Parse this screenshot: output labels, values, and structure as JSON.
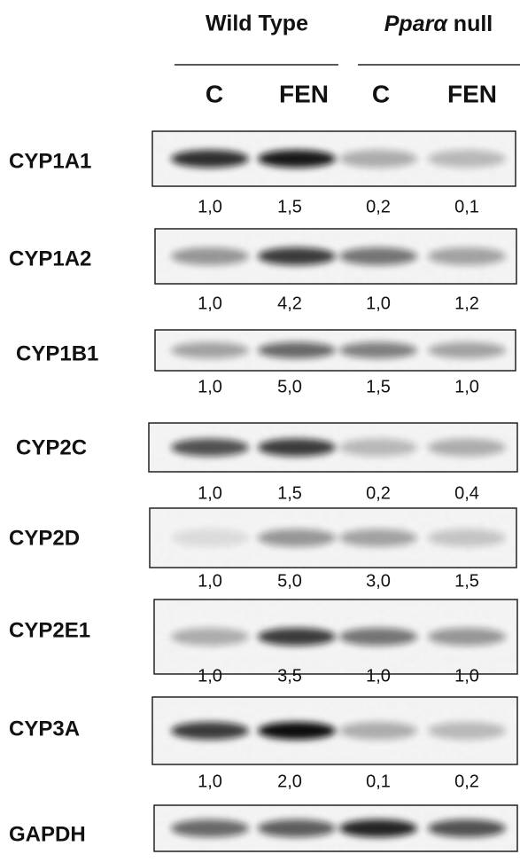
{
  "header": {
    "groups": [
      {
        "text": "Wild Type"
      },
      {
        "italic": "Pparα",
        "text": "null"
      }
    ],
    "lanes": [
      "C",
      "FEN",
      "C",
      "FEN"
    ]
  },
  "rows": [
    {
      "label": "CYP1A1",
      "values": [
        "1,0",
        "1,5",
        "0,2",
        "0,1"
      ]
    },
    {
      "label": "CYP1A2",
      "values": [
        "1,0",
        "4,2",
        "1,0",
        "1,2"
      ]
    },
    {
      "label": "CYP1B1",
      "values": [
        "1,0",
        "5,0",
        "1,5",
        "1,0"
      ]
    },
    {
      "label": "CYP2C",
      "values": [
        "1,0",
        "1,5",
        "0,2",
        "0,4"
      ]
    },
    {
      "label": "CYP2D",
      "values": [
        "1,0",
        "5,0",
        "3,0",
        "1,5"
      ]
    },
    {
      "label": "CYP2E1",
      "values": [
        "1,0",
        "3,5",
        "1,0",
        "1,0"
      ]
    },
    {
      "label": "CYP3A",
      "values": [
        "1,0",
        "2,0",
        "0,1",
        "0,2"
      ]
    },
    {
      "label": "GAPDH"
    }
  ]
}
